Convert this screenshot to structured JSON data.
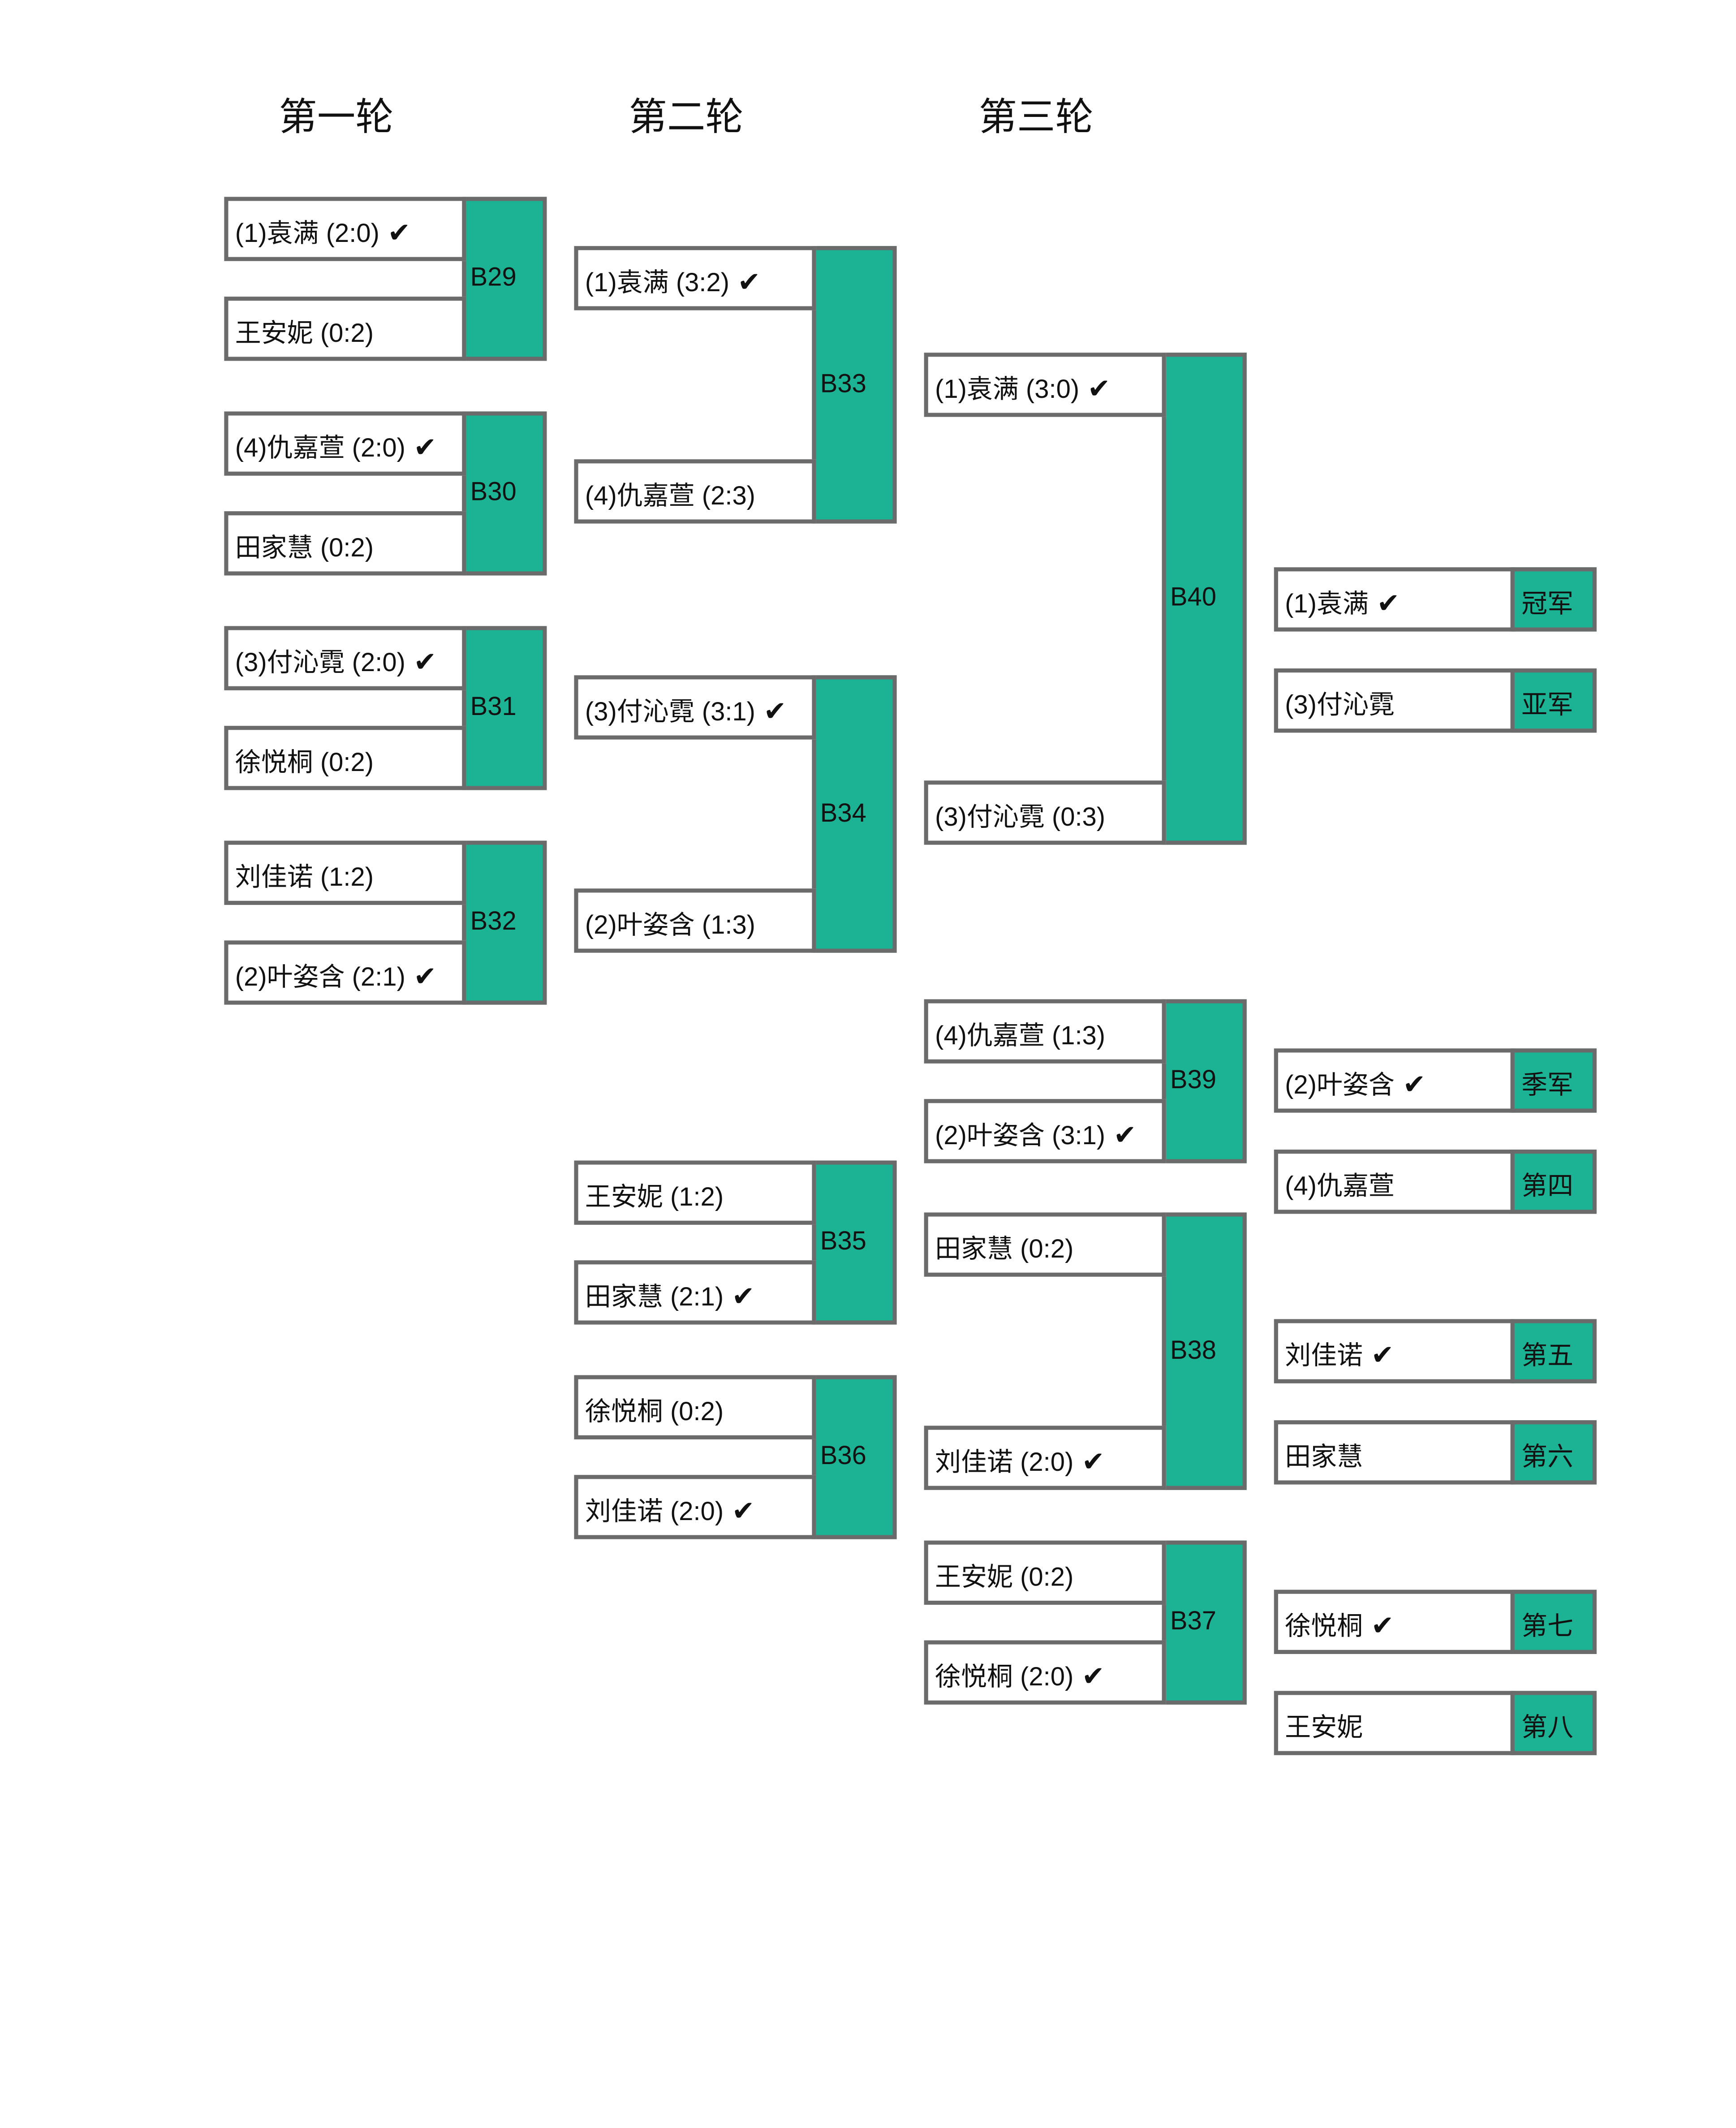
{
  "rounds": [
    "第一轮",
    "第二轮",
    "第三轮"
  ],
  "colors": {
    "border": "#6b6b6b",
    "match": "#1bb394"
  },
  "check_icon": "✔",
  "matches": [
    {
      "id": "B29",
      "top": {
        "text": "(1)袁满 (2:0)",
        "winner": true
      },
      "bottom": {
        "text": "王安妮 (0:2)",
        "winner": false
      }
    },
    {
      "id": "B30",
      "top": {
        "text": "(4)仇嘉萱 (2:0)",
        "winner": true
      },
      "bottom": {
        "text": "田家慧 (0:2)",
        "winner": false
      }
    },
    {
      "id": "B31",
      "top": {
        "text": "(3)付沁霓 (2:0)",
        "winner": true
      },
      "bottom": {
        "text": "徐悦桐 (0:2)",
        "winner": false
      }
    },
    {
      "id": "B32",
      "top": {
        "text": "刘佳诺 (1:2)",
        "winner": false
      },
      "bottom": {
        "text": "(2)叶姿含 (2:1)",
        "winner": true
      }
    },
    {
      "id": "B33",
      "top": {
        "text": "(1)袁满 (3:2)",
        "winner": true
      },
      "bottom": {
        "text": "(4)仇嘉萱 (2:3)",
        "winner": false
      }
    },
    {
      "id": "B34",
      "top": {
        "text": "(3)付沁霓 (3:1)",
        "winner": true
      },
      "bottom": {
        "text": "(2)叶姿含 (1:3)",
        "winner": false
      }
    },
    {
      "id": "B35",
      "top": {
        "text": "王安妮 (1:2)",
        "winner": false
      },
      "bottom": {
        "text": "田家慧 (2:1)",
        "winner": true
      }
    },
    {
      "id": "B36",
      "top": {
        "text": "徐悦桐 (0:2)",
        "winner": false
      },
      "bottom": {
        "text": "刘佳诺 (2:0)",
        "winner": true
      }
    },
    {
      "id": "B40",
      "top": {
        "text": "(1)袁满 (3:0)",
        "winner": true
      },
      "bottom": {
        "text": "(3)付沁霓 (0:3)",
        "winner": false
      }
    },
    {
      "id": "B39",
      "top": {
        "text": "(4)仇嘉萱 (1:3)",
        "winner": false
      },
      "bottom": {
        "text": "(2)叶姿含 (3:1)",
        "winner": true
      }
    },
    {
      "id": "B38",
      "top": {
        "text": "田家慧 (0:2)",
        "winner": false
      },
      "bottom": {
        "text": "刘佳诺 (2:0)",
        "winner": true
      }
    },
    {
      "id": "B37",
      "top": {
        "text": "王安妮 (0:2)",
        "winner": false
      },
      "bottom": {
        "text": "徐悦桐 (2:0)",
        "winner": true
      }
    }
  ],
  "results": [
    {
      "name": "(1)袁满",
      "winner": true,
      "place": "冠军"
    },
    {
      "name": "(3)付沁霓",
      "winner": false,
      "place": "亚军"
    },
    {
      "name": "(2)叶姿含",
      "winner": true,
      "place": "季军"
    },
    {
      "name": "(4)仇嘉萱",
      "winner": false,
      "place": "第四"
    },
    {
      "name": "刘佳诺",
      "winner": true,
      "place": "第五"
    },
    {
      "name": "田家慧",
      "winner": false,
      "place": "第六"
    },
    {
      "name": "徐悦桐",
      "winner": true,
      "place": "第七"
    },
    {
      "name": "王安妮",
      "winner": false,
      "place": "第八"
    }
  ]
}
